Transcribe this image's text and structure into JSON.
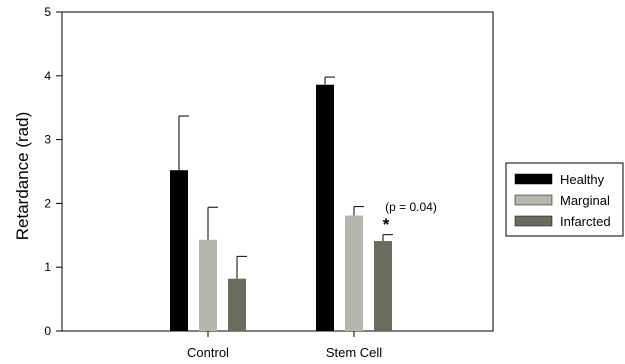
{
  "chart_data": {
    "type": "bar",
    "title": "",
    "xlabel": "",
    "ylabel": "Retardance (rad)",
    "ylim": [
      0,
      5
    ],
    "yticks": [
      "0",
      "1",
      "2",
      "3",
      "4",
      "5"
    ],
    "categories": [
      "Control",
      "Stem Cell"
    ],
    "series": [
      {
        "name": "Healthy",
        "color": "#000000",
        "values": [
          2.52,
          3.86
        ],
        "errors": [
          0.85,
          0.12
        ]
      },
      {
        "name": "Marginal",
        "color": "#b4b7ac",
        "values": [
          1.43,
          1.81
        ],
        "errors": [
          0.51,
          0.14
        ]
      },
      {
        "name": "Infarcted",
        "color": "#6b6d5c",
        "values": [
          0.82,
          1.41
        ],
        "errors": [
          0.35,
          0.1
        ]
      }
    ],
    "annotations": {
      "p_value": "(p = 0.04)",
      "significance": "*"
    },
    "legend": {
      "placement": "right"
    },
    "grid": false
  }
}
